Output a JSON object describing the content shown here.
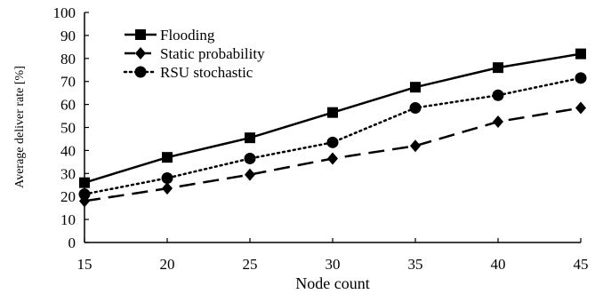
{
  "chart_data": {
    "type": "line",
    "title": "",
    "xlabel": "Node count",
    "ylabel": "Average deliver rate [%]",
    "x": [
      15,
      20,
      25,
      30,
      35,
      40,
      45
    ],
    "xticks": [
      "15",
      "20",
      "25",
      "30",
      "35",
      "40",
      "45"
    ],
    "ylim": [
      0,
      100
    ],
    "yticks": [
      "0",
      "10",
      "20",
      "30",
      "40",
      "50",
      "60",
      "70",
      "80",
      "90",
      "100"
    ],
    "grid": false,
    "legend_position": "top-left",
    "series": [
      {
        "name": "Flooding",
        "values": [
          26,
          37,
          45.5,
          56.5,
          67.5,
          76,
          82
        ],
        "marker": "square",
        "line": "solid"
      },
      {
        "name": "Static probability",
        "values": [
          18,
          23.5,
          29.5,
          36.5,
          42,
          52.5,
          58.5
        ],
        "marker": "diamond",
        "line": "dashed"
      },
      {
        "name": "RSU stochastic",
        "values": [
          21,
          28,
          36.5,
          43.5,
          58.5,
          64,
          71.5
        ],
        "marker": "circle",
        "line": "dotted"
      }
    ]
  }
}
